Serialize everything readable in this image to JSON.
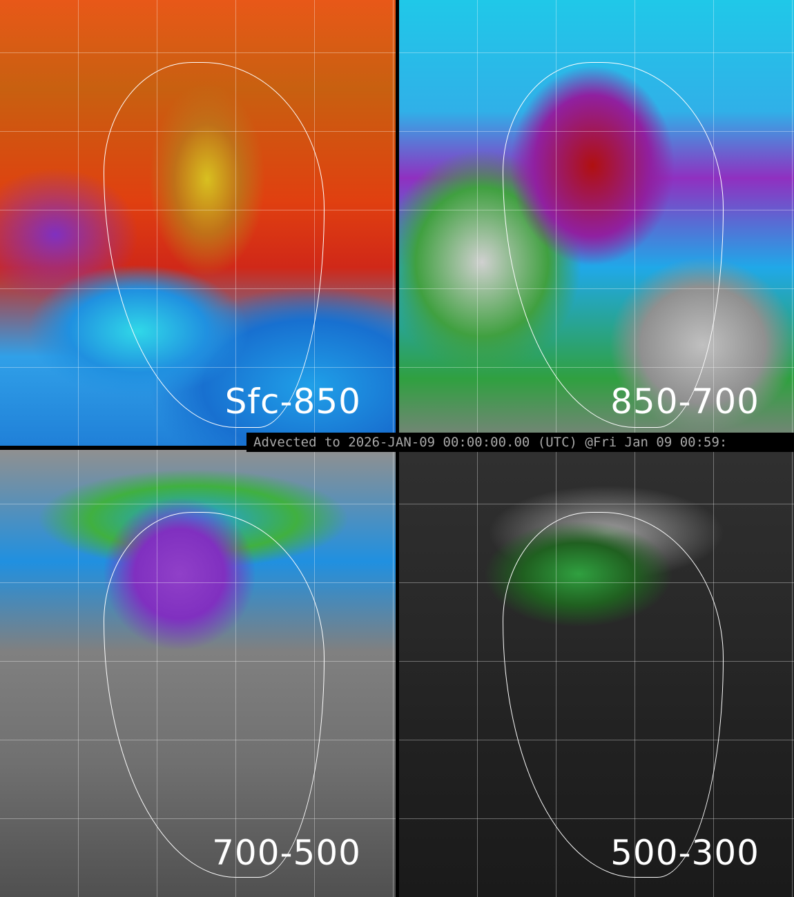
{
  "panels": [
    {
      "label": "Sfc-850"
    },
    {
      "label": "850-700"
    },
    {
      "label": "700-500"
    },
    {
      "label": "500-300"
    }
  ],
  "banner": "Advected to 2026-JAN-09 00:00:00.00 (UTC) @Fri Jan 09 00:59:",
  "colors": {
    "background": "#000000",
    "banner_text": "#a8a8a8",
    "coastline": "#ffffff"
  }
}
